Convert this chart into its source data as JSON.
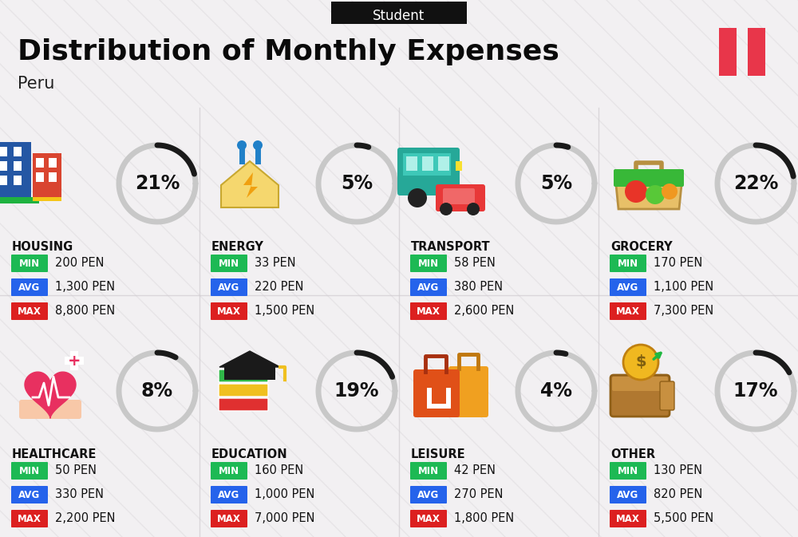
{
  "title": "Distribution of Monthly Expenses",
  "subtitle": "Peru",
  "tag": "Student",
  "bg_color": "#f2f0f2",
  "categories": [
    {
      "name": "HOUSING",
      "pct": 21,
      "min_val": "200 PEN",
      "avg_val": "1,300 PEN",
      "max_val": "8,800 PEN",
      "col": 0,
      "row": 0
    },
    {
      "name": "ENERGY",
      "pct": 5,
      "min_val": "33 PEN",
      "avg_val": "220 PEN",
      "max_val": "1,500 PEN",
      "col": 1,
      "row": 0
    },
    {
      "name": "TRANSPORT",
      "pct": 5,
      "min_val": "58 PEN",
      "avg_val": "380 PEN",
      "max_val": "2,600 PEN",
      "col": 2,
      "row": 0
    },
    {
      "name": "GROCERY",
      "pct": 22,
      "min_val": "170 PEN",
      "avg_val": "1,100 PEN",
      "max_val": "7,300 PEN",
      "col": 3,
      "row": 0
    },
    {
      "name": "HEALTHCARE",
      "pct": 8,
      "min_val": "50 PEN",
      "avg_val": "330 PEN",
      "max_val": "2,200 PEN",
      "col": 0,
      "row": 1
    },
    {
      "name": "EDUCATION",
      "pct": 19,
      "min_val": "160 PEN",
      "avg_val": "1,000 PEN",
      "max_val": "7,000 PEN",
      "col": 1,
      "row": 1
    },
    {
      "name": "LEISURE",
      "pct": 4,
      "min_val": "42 PEN",
      "avg_val": "270 PEN",
      "max_val": "1,800 PEN",
      "col": 2,
      "row": 1
    },
    {
      "name": "OTHER",
      "pct": 17,
      "min_val": "130 PEN",
      "avg_val": "820 PEN",
      "max_val": "5,500 PEN",
      "col": 3,
      "row": 1
    }
  ],
  "min_color": "#1db954",
  "avg_color": "#2563eb",
  "max_color": "#dc2020",
  "arc_dark": "#1a1a1a",
  "arc_light": "#c8c8c8",
  "peru_flag_red": "#e8364a",
  "title_fontsize": 26,
  "subtitle_fontsize": 15,
  "tag_fontsize": 12,
  "cat_fontsize": 10.5,
  "val_fontsize": 10.5,
  "pct_fontsize": 17,
  "lbl_fontsize": 8.5,
  "diag_color": "#e0dce0",
  "separator_color": "#d0ccd0"
}
